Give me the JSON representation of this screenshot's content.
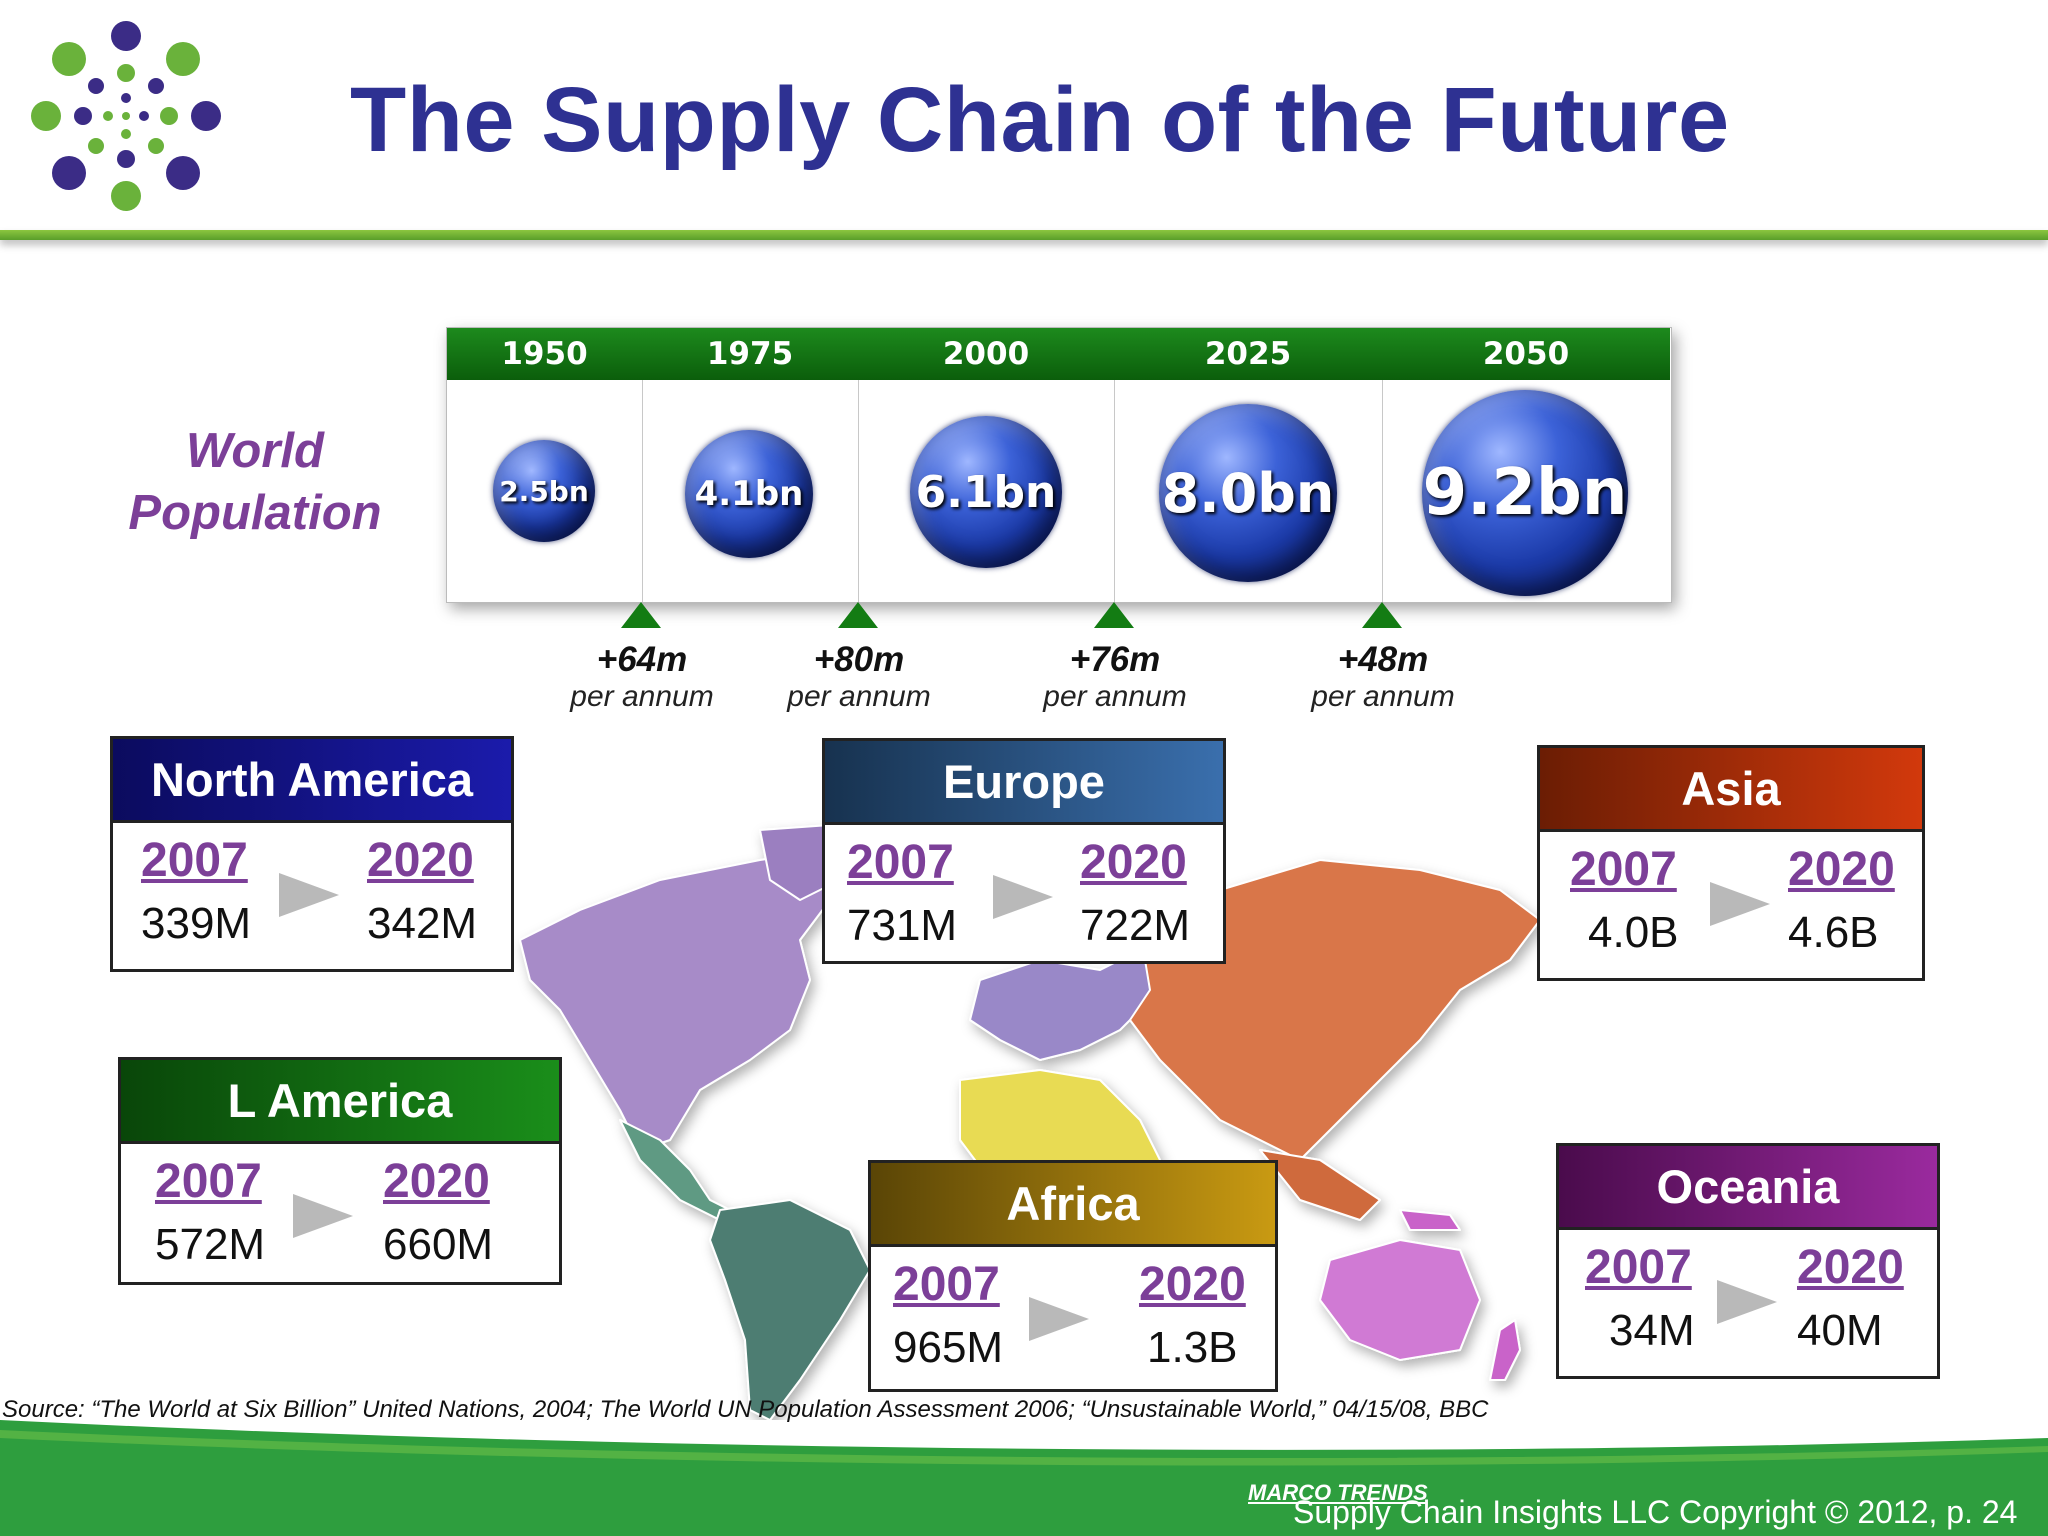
{
  "header": {
    "title": "The Supply Chain of the Future"
  },
  "world_population_label": {
    "line1": "World",
    "line2": "Population"
  },
  "timeline": [
    {
      "year": "1950",
      "population": "2.5bn"
    },
    {
      "year": "1975",
      "population": "4.1bn"
    },
    {
      "year": "2000",
      "population": "6.1bn"
    },
    {
      "year": "2025",
      "population": "8.0bn"
    },
    {
      "year": "2050",
      "population": "9.2bn"
    }
  ],
  "growth": [
    {
      "value": "+64m",
      "unit": "per annum"
    },
    {
      "value": "+80m",
      "unit": "per annum"
    },
    {
      "value": "+76m",
      "unit": "per annum"
    },
    {
      "value": "+48m",
      "unit": "per annum"
    }
  ],
  "regions": {
    "north_america": {
      "name": "North America",
      "year_from": "2007",
      "year_to": "2020",
      "value_from": "339M",
      "value_to": "342M",
      "color": "#0d0d7a"
    },
    "europe": {
      "name": "Europe",
      "year_from": "2007",
      "year_to": "2020",
      "value_from": "731M",
      "value_to": "722M",
      "color": "#2c5d94"
    },
    "asia": {
      "name": "Asia",
      "year_from": "2007",
      "year_to": "2020",
      "value_from": "4.0B",
      "value_to": "4.6B",
      "color": "#b8330e"
    },
    "l_america": {
      "name": "L America",
      "year_from": "2007",
      "year_to": "2020",
      "value_from": "572M",
      "value_to": "660M",
      "color": "#0f6e0f"
    },
    "africa": {
      "name": "Africa",
      "year_from": "2007",
      "year_to": "2020",
      "value_from": "965M",
      "value_to": "1.3B",
      "color": "#9e7d0c"
    },
    "oceania": {
      "name": "Oceania",
      "year_from": "2007",
      "year_to": "2020",
      "value_from": "34M",
      "value_to": "40M",
      "color": "#7c1f7e"
    }
  },
  "source": "Source: “The World at Six Billion” United Nations, 2004; The World UN Population Assessment 2006; “Unsustainable World,” 04/15/08, BBC",
  "footer": {
    "tag": "MARCO TRENDS",
    "copyright": "Supply Chain Insights LLC Copyright © 2012, p. 24"
  },
  "icons": [
    "company-logo",
    "globe-icon",
    "world-map",
    "arrow-right-icon",
    "triangle-marker-icon"
  ]
}
